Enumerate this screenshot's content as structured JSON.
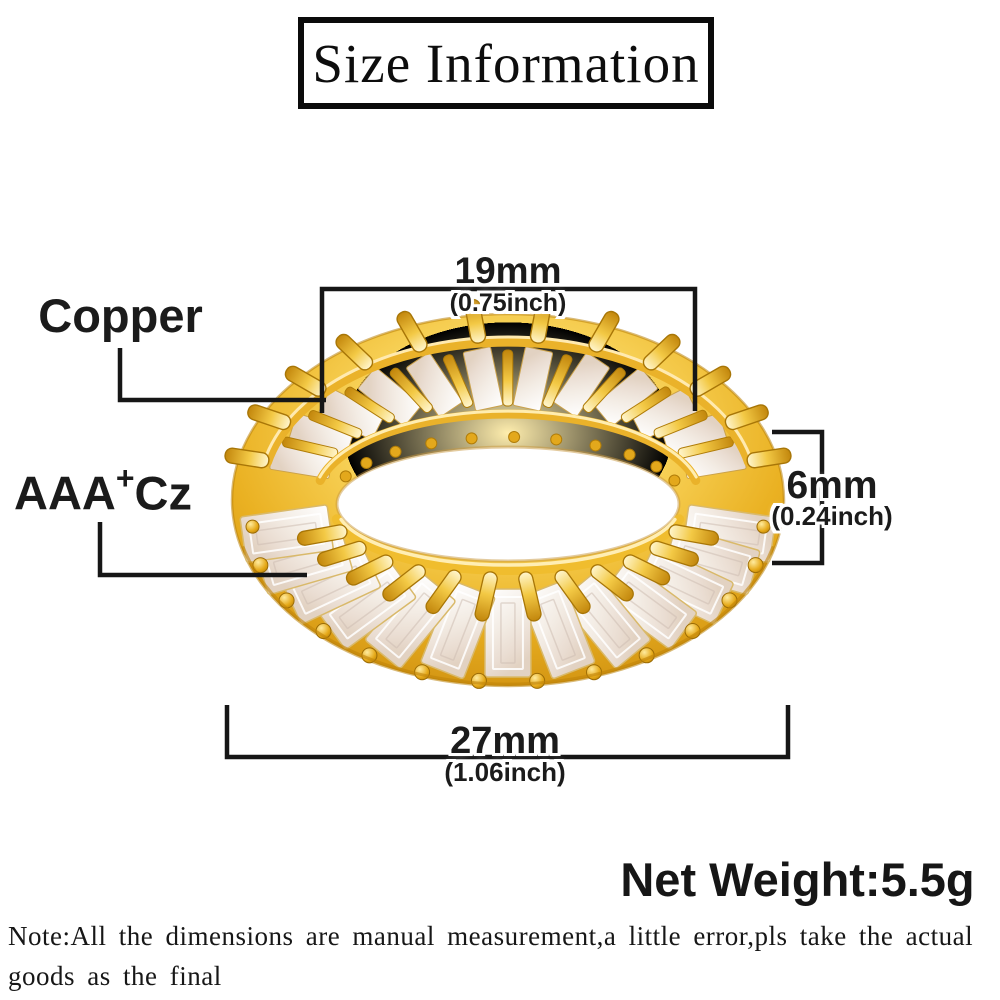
{
  "title": "Size Information",
  "materials": {
    "band_label": "Copper",
    "stone_label_base": "AAA",
    "stone_label_sup": "+",
    "stone_label_rest": "Cz"
  },
  "dimensions": {
    "inner_diameter_mm": "19mm",
    "inner_diameter_inch": "(0.75inch)",
    "band_width_mm": "6mm",
    "band_width_inch": "(0.24inch)",
    "outer_diameter_mm": "27mm",
    "outer_diameter_inch": "(1.06inch)"
  },
  "net_weight": "Net Weight:5.5g",
  "note": {
    "line1": "Note:All the dimensions are manual measurement,a little error,pls take the actual",
    "line2": "goods as the final"
  },
  "colors": {
    "gold": "#e8ae22",
    "annotation_line": "#161616",
    "stone": "#f3ece4"
  }
}
